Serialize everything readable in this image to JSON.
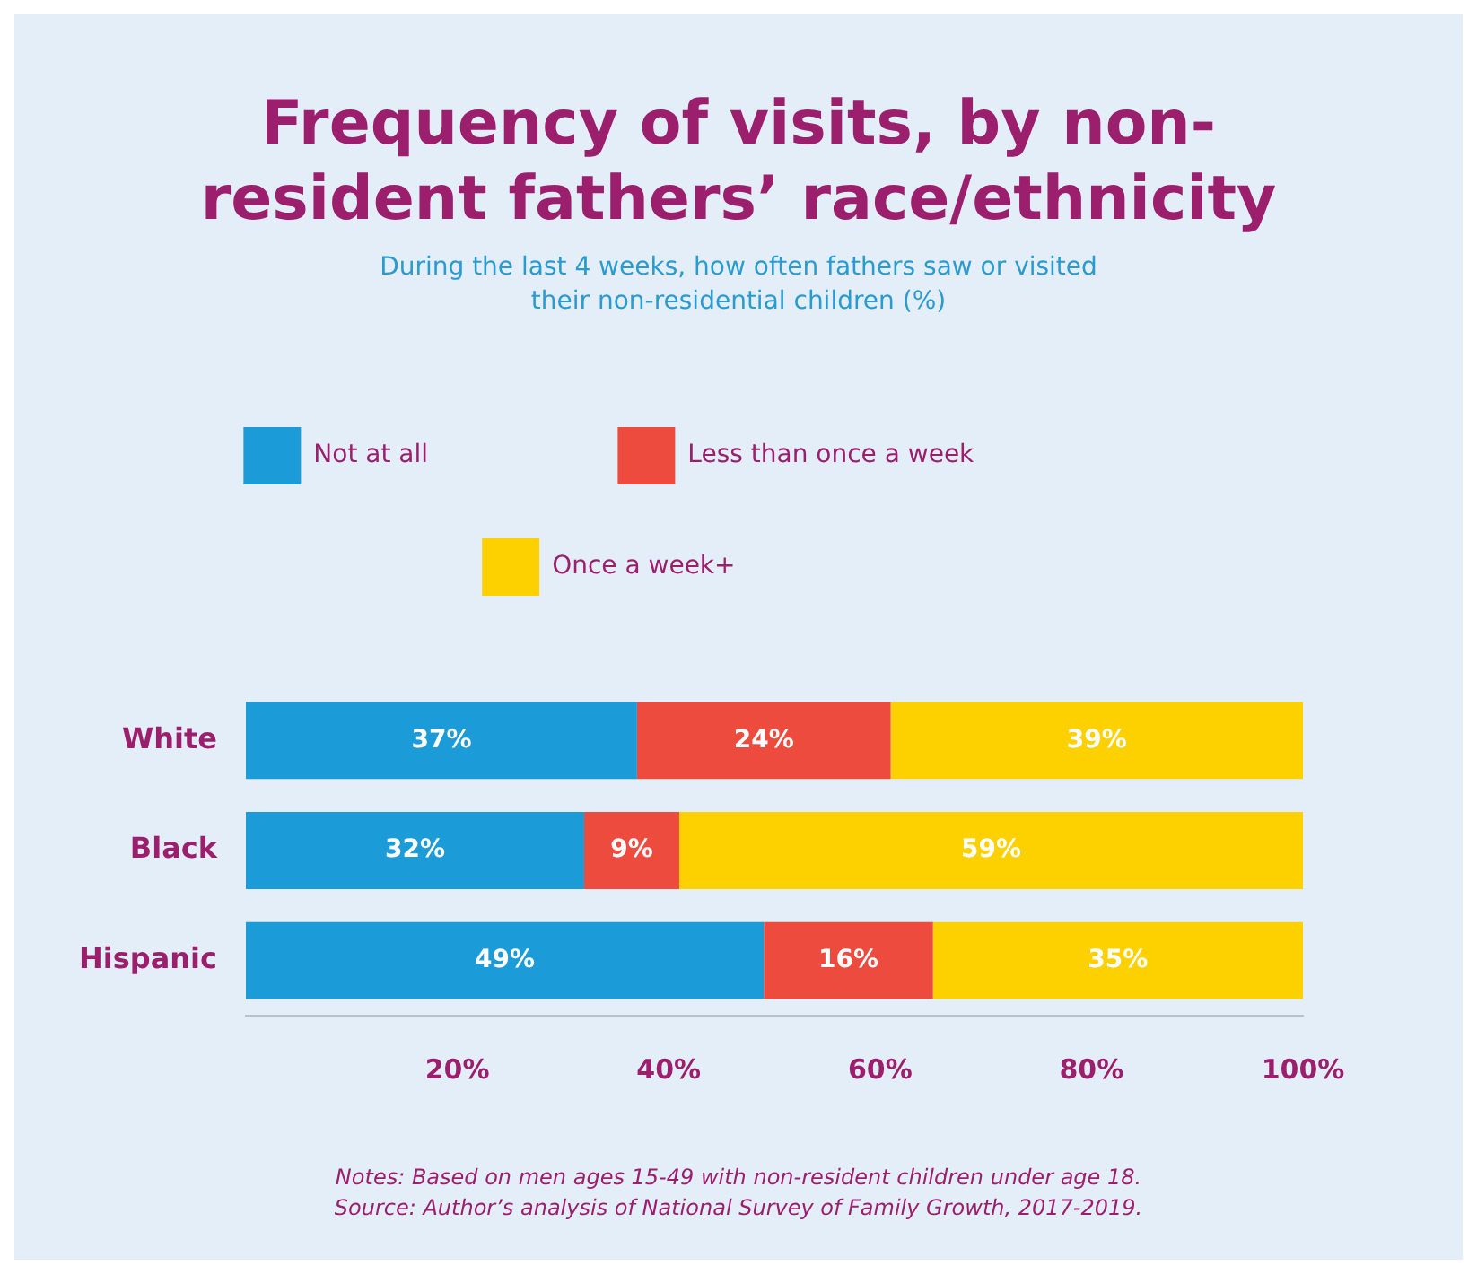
{
  "chart_data": {
    "type": "bar",
    "orientation": "horizontal",
    "stacked": true,
    "title": "Frequency of visits, by non-resident fathers’ race/ethnicity",
    "subtitle": "During the last 4 weeks, how often fathers saw or visited their non-residential children (%)",
    "categories": [
      "White",
      "Black",
      "Hispanic"
    ],
    "series": [
      {
        "name": "Not at all",
        "color": "#1b9bd8",
        "values": [
          37,
          32,
          49
        ],
        "value_labels": [
          "37%",
          "32%",
          "49%"
        ]
      },
      {
        "name": "Less than once a week",
        "color": "#ee4b3f",
        "values": [
          24,
          9,
          16
        ],
        "value_labels": [
          "24%",
          "9%",
          "16%"
        ]
      },
      {
        "name": "Once a week+",
        "color": "#fdd100",
        "values": [
          39,
          59,
          35
        ],
        "value_labels": [
          "39%",
          "59%",
          "35%"
        ]
      }
    ],
    "xlim": [
      0,
      100
    ],
    "xticks": [
      {
        "value": 20,
        "label": "20%"
      },
      {
        "value": 40,
        "label": "40%"
      },
      {
        "value": 60,
        "label": "60%"
      },
      {
        "value": 80,
        "label": "80%"
      },
      {
        "value": 100,
        "label": "100%"
      }
    ],
    "grid": false,
    "legend": "top",
    "annotations": [
      "Notes: Based on men ages 15-49 with non-resident children under age 18.",
      "Source: Author’s analysis of National Survey of Family Growth, 2017-2019."
    ]
  }
}
